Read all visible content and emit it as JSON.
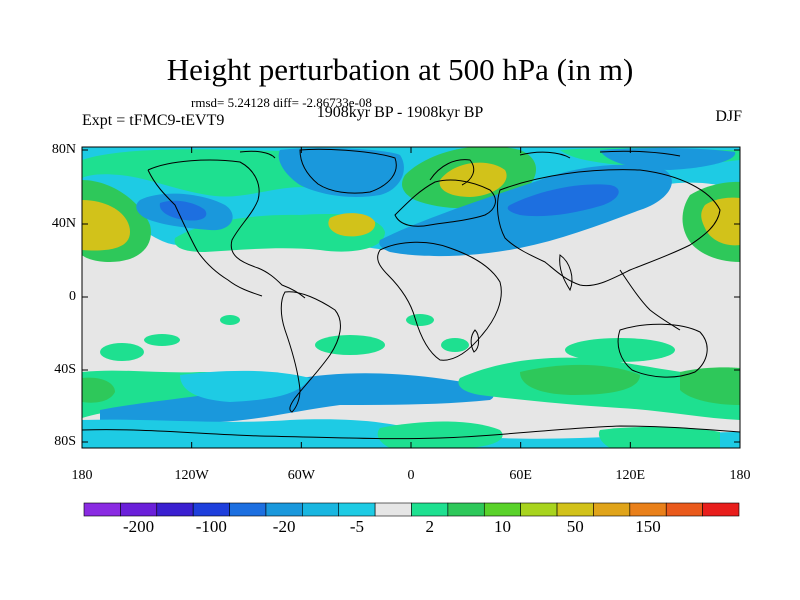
{
  "title": "Height perturbation at 500 hPa (in m)",
  "stats": "rmsd= 5.24128  diff= -2.86733e-08",
  "period": "1908kyr BP - 1908kyr BP",
  "experiment": "Expt = tFMC9-tEVT9",
  "season": "DJF",
  "axes": {
    "x_ticks": [
      "180",
      "120W",
      "60W",
      "0",
      "60E",
      "120E",
      "180"
    ],
    "y_ticks": [
      "80N",
      "40N",
      "0",
      "40S",
      "80S"
    ]
  },
  "colorbar": {
    "colors": [
      "#8a2be2",
      "#6a1fd9",
      "#3a1fd0",
      "#1e3fdc",
      "#1d6fe0",
      "#1a98dc",
      "#19b6e0",
      "#1ecbe4",
      "#e6e6e6",
      "#1ee090",
      "#2ec85a",
      "#5ad22a",
      "#a8d41e",
      "#d2c21a",
      "#e0a41a",
      "#e9801a",
      "#ea5a1c",
      "#e81e1c"
    ],
    "labels": [
      "-200",
      "-100",
      "-20",
      "-5",
      "2",
      "10",
      "50",
      "150"
    ]
  },
  "colors": {
    "background": "#e6e6e6",
    "light_blue": "#1ecbe4",
    "mid_blue": "#1a98dc",
    "dark_blue": "#1d6fe0",
    "light_green": "#1ee090",
    "green": "#2ec85a",
    "yellow": "#d2c21a",
    "orange": "#e0a41a"
  }
}
